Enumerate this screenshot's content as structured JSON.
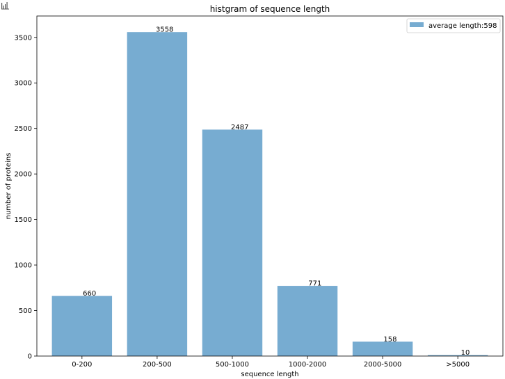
{
  "chart_data": {
    "type": "bar",
    "title": "histgram of sequence length",
    "xlabel": "sequence length",
    "ylabel": "number of proteins",
    "categories": [
      "0-200",
      "200-500",
      "500-1000",
      "1000-2000",
      "2000-5000",
      ">5000"
    ],
    "values": [
      660,
      3558,
      2487,
      771,
      158,
      10
    ],
    "value_labels": [
      "660",
      "3558",
      "2487",
      "771",
      "158",
      "10"
    ],
    "ylim": [
      0,
      3735
    ],
    "yticks": [
      0,
      500,
      1000,
      1500,
      2000,
      2500,
      3000,
      3500
    ],
    "ytick_labels": [
      "0",
      "500",
      "1000",
      "1500",
      "2000",
      "2500",
      "3000",
      "3500"
    ],
    "legend": {
      "placement": "top-right",
      "entries": [
        "average length:598"
      ]
    },
    "grid": false,
    "bar_color": "#77acd1",
    "icon": "chart-bar-icon"
  }
}
